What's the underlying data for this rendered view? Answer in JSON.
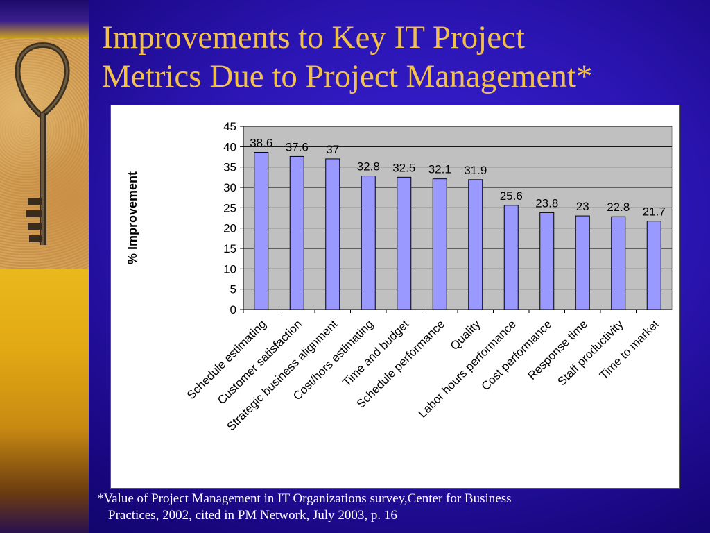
{
  "slide": {
    "title_line1": "Improvements to Key IT Project",
    "title_line2": "Metrics Due to Project Management*",
    "footnote_line1": "*Value of Project Management in IT Organizations survey,Center for Business",
    "footnote_line2": "Practices, 2002, cited in PM Network, July 2003, p. 16"
  },
  "colors": {
    "title": "#f2c04c",
    "bar_fill": "#9999ff",
    "plot_background": "#c0c0c0"
  },
  "chart_data": {
    "type": "bar",
    "title": "",
    "xlabel": "",
    "ylabel": "% Improvement",
    "ylim": [
      0,
      45
    ],
    "yticks": [
      0,
      5,
      10,
      15,
      20,
      25,
      30,
      35,
      40,
      45
    ],
    "grid": true,
    "legend": "none",
    "categories": [
      "Schedule estimating",
      "Customer satisfaction",
      "Strategic business alignment",
      "Cost/hors estimating",
      "Time and budget",
      "Schedule performance",
      "Quality",
      "Labor hours performance",
      "Cost performance",
      "Response time",
      "Staff productivity",
      "Time to market"
    ],
    "values": [
      38.6,
      37.6,
      37,
      32.8,
      32.5,
      32.1,
      31.9,
      25.6,
      23.8,
      23,
      22.8,
      21.7
    ],
    "data_labels": [
      "38.6",
      "37.6",
      "37",
      "32.8",
      "32.5",
      "32.1",
      "31.9",
      "25.6",
      "23.8",
      "23",
      "22.8",
      "21.7"
    ]
  }
}
